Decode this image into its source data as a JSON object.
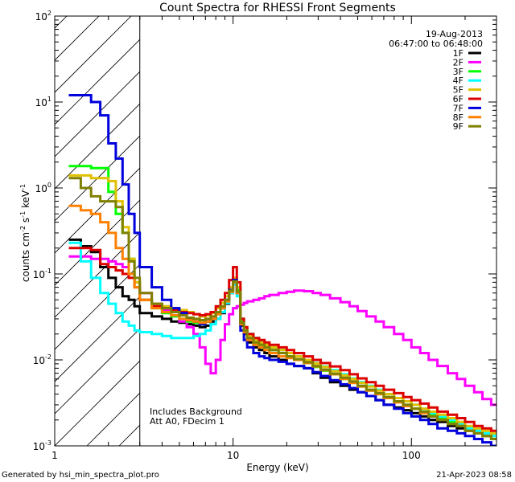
{
  "chart_data": {
    "type": "line",
    "title": "Count Spectra for RHESSI Front Segments",
    "xlabel": "Energy (keV)",
    "ylabel_parts": [
      "counts cm",
      "-2",
      " s",
      "-1",
      " keV",
      "-1"
    ],
    "xscale": "log",
    "yscale": "log",
    "xlim": [
      1,
      300
    ],
    "ylim": [
      0.001,
      100
    ],
    "x_tick_labels": [
      "1",
      "10",
      "100"
    ],
    "y_tick_labels": [
      {
        "base": "10",
        "exp": "2",
        "value": 100
      },
      {
        "base": "10",
        "exp": "1",
        "value": 10
      },
      {
        "base": "10",
        "exp": "0",
        "value": 1
      },
      {
        "base": "10",
        "exp": "-1",
        "value": 0.1
      },
      {
        "base": "10",
        "exp": "-2",
        "value": 0.01
      },
      {
        "base": "10",
        "exp": "-3",
        "value": 0.001
      }
    ],
    "legend_header": [
      "19-Aug-2013",
      "06:47:00 to 06:48:00"
    ],
    "legend_position": "top-right",
    "hatched_region_energy_max": 3,
    "annotations": [
      "Includes Background",
      "Att A0, FDecim 1"
    ],
    "energies": [
      1.2,
      1.4,
      1.6,
      1.8,
      2.0,
      2.2,
      2.4,
      2.6,
      2.8,
      3.0,
      3.5,
      4.0,
      4.5,
      5.0,
      5.5,
      6.0,
      6.5,
      7.0,
      7.5,
      8.0,
      8.5,
      9.0,
      9.5,
      10.0,
      10.5,
      11.0,
      11.5,
      12.0,
      13,
      14,
      15,
      16,
      18,
      20,
      22,
      25,
      28,
      31,
      35,
      40,
      45,
      50,
      56,
      63,
      70,
      80,
      90,
      100,
      112,
      125,
      140,
      160,
      180,
      200,
      225,
      250,
      280
    ],
    "series": [
      {
        "name": "1F",
        "color": "#000000",
        "values": [
          0.25,
          0.21,
          0.18,
          0.12,
          0.09,
          0.07,
          0.055,
          0.05,
          0.042,
          0.035,
          0.032,
          0.03,
          0.028,
          0.027,
          0.026,
          0.025,
          0.024,
          0.025,
          0.028,
          0.03,
          0.035,
          0.045,
          0.06,
          0.08,
          0.06,
          0.025,
          0.02,
          0.016,
          0.014,
          0.013,
          0.012,
          0.011,
          0.01,
          0.009,
          0.0085,
          0.008,
          0.007,
          0.0062,
          0.0055,
          0.005,
          0.0045,
          0.0042,
          0.0038,
          0.0034,
          0.003,
          0.0028,
          0.0026,
          0.0024,
          0.0022,
          0.002,
          0.0019,
          0.0017,
          0.0016,
          0.0015,
          0.0014,
          0.0013,
          0.0012
        ]
      },
      {
        "name": "2F",
        "color": "#ff00ff",
        "values": [
          0.16,
          0.16,
          0.15,
          0.15,
          0.14,
          0.13,
          0.12,
          0.1,
          0.08,
          0.06,
          0.045,
          0.038,
          0.032,
          0.028,
          0.024,
          0.02,
          0.014,
          0.009,
          0.007,
          0.01,
          0.017,
          0.026,
          0.034,
          0.04,
          0.042,
          0.044,
          0.046,
          0.048,
          0.05,
          0.052,
          0.055,
          0.057,
          0.06,
          0.062,
          0.064,
          0.063,
          0.06,
          0.057,
          0.052,
          0.047,
          0.042,
          0.037,
          0.032,
          0.028,
          0.024,
          0.02,
          0.017,
          0.014,
          0.012,
          0.01,
          0.0085,
          0.007,
          0.006,
          0.005,
          0.0042,
          0.0035,
          0.003
        ]
      },
      {
        "name": "3F",
        "color": "#00ff00",
        "values": [
          1.8,
          1.8,
          1.7,
          1.7,
          0.9,
          0.5,
          0.3,
          0.15,
          0.08,
          0.05,
          0.04,
          0.035,
          0.032,
          0.03,
          0.028,
          0.027,
          0.026,
          0.028,
          0.03,
          0.034,
          0.04,
          0.05,
          0.065,
          0.085,
          0.065,
          0.028,
          0.022,
          0.018,
          0.016,
          0.015,
          0.014,
          0.013,
          0.012,
          0.011,
          0.01,
          0.0092,
          0.0083,
          0.0075,
          0.0068,
          0.006,
          0.0054,
          0.0049,
          0.0044,
          0.004,
          0.0036,
          0.0033,
          0.003,
          0.0027,
          0.0025,
          0.0023,
          0.0021,
          0.0019,
          0.0018,
          0.0016,
          0.0015,
          0.0014,
          0.0013
        ]
      },
      {
        "name": "4F",
        "color": "#00ffff",
        "values": [
          0.23,
          0.14,
          0.09,
          0.06,
          0.045,
          0.035,
          0.028,
          0.025,
          0.022,
          0.021,
          0.02,
          0.019,
          0.018,
          0.018,
          0.018,
          0.019,
          0.02,
          0.022,
          0.026,
          0.03,
          0.036,
          0.046,
          0.06,
          0.075,
          0.055,
          0.03,
          0.024,
          0.02,
          0.018,
          0.016,
          0.015,
          0.014,
          0.013,
          0.012,
          0.011,
          0.01,
          0.0092,
          0.0084,
          0.0076,
          0.0068,
          0.0061,
          0.0055,
          0.005,
          0.0045,
          0.004,
          0.0036,
          0.0033,
          0.003,
          0.0027,
          0.0024,
          0.0022,
          0.002,
          0.0018,
          0.0016,
          0.0015,
          0.0014,
          0.0013
        ]
      },
      {
        "name": "5F",
        "color": "#e0c000",
        "values": [
          1.4,
          1.4,
          1.3,
          1.3,
          1.2,
          0.7,
          0.35,
          0.15,
          0.08,
          0.05,
          0.045,
          0.042,
          0.04,
          0.038,
          0.036,
          0.034,
          0.032,
          0.033,
          0.035,
          0.04,
          0.046,
          0.055,
          0.07,
          0.09,
          0.07,
          0.03,
          0.024,
          0.019,
          0.017,
          0.016,
          0.015,
          0.014,
          0.013,
          0.012,
          0.011,
          0.01,
          0.0091,
          0.0083,
          0.0074,
          0.0066,
          0.006,
          0.0054,
          0.0049,
          0.0044,
          0.004,
          0.0036,
          0.0033,
          0.003,
          0.0027,
          0.0025,
          0.0023,
          0.0021,
          0.0019,
          0.0017,
          0.0016,
          0.0015,
          0.0014
        ]
      },
      {
        "name": "6F",
        "color": "#dd0000",
        "values": [
          0.2,
          0.2,
          0.19,
          0.13,
          0.12,
          0.11,
          0.1,
          0.09,
          0.07,
          0.05,
          0.042,
          0.04,
          0.038,
          0.036,
          0.035,
          0.034,
          0.033,
          0.034,
          0.036,
          0.042,
          0.05,
          0.06,
          0.085,
          0.12,
          0.08,
          0.03,
          0.024,
          0.02,
          0.018,
          0.017,
          0.016,
          0.015,
          0.014,
          0.013,
          0.012,
          0.011,
          0.01,
          0.0092,
          0.0084,
          0.0076,
          0.0068,
          0.0061,
          0.0055,
          0.005,
          0.0045,
          0.0041,
          0.0037,
          0.0034,
          0.0031,
          0.0028,
          0.0025,
          0.0023,
          0.0021,
          0.0019,
          0.0017,
          0.0016,
          0.0015
        ]
      },
      {
        "name": "7F",
        "color": "#0000dd",
        "values": [
          12,
          12,
          10,
          7,
          3.3,
          2.2,
          1.1,
          0.5,
          0.3,
          0.12,
          0.07,
          0.05,
          0.04,
          0.035,
          0.03,
          0.028,
          0.026,
          0.028,
          0.03,
          0.035,
          0.04,
          0.05,
          0.065,
          0.085,
          0.06,
          0.022,
          0.017,
          0.014,
          0.012,
          0.011,
          0.0105,
          0.01,
          0.0095,
          0.009,
          0.0085,
          0.008,
          0.0072,
          0.0065,
          0.0058,
          0.0052,
          0.0047,
          0.0042,
          0.0038,
          0.0034,
          0.003,
          0.0027,
          0.0024,
          0.0022,
          0.002,
          0.0018,
          0.0016,
          0.0015,
          0.0014,
          0.0013,
          0.0012,
          0.0011,
          0.001
        ]
      },
      {
        "name": "8F",
        "color": "#ff8000",
        "values": [
          0.62,
          0.55,
          0.5,
          0.4,
          0.3,
          0.2,
          0.15,
          0.1,
          0.07,
          0.05,
          0.04,
          0.036,
          0.033,
          0.03,
          0.029,
          0.028,
          0.027,
          0.028,
          0.03,
          0.034,
          0.04,
          0.048,
          0.062,
          0.08,
          0.06,
          0.026,
          0.021,
          0.017,
          0.015,
          0.014,
          0.013,
          0.012,
          0.011,
          0.0105,
          0.01,
          0.0092,
          0.0084,
          0.0076,
          0.0068,
          0.006,
          0.0054,
          0.0049,
          0.0044,
          0.004,
          0.0036,
          0.0032,
          0.0029,
          0.0027,
          0.0024,
          0.0022,
          0.002,
          0.0018,
          0.0017,
          0.0015,
          0.0014,
          0.0013,
          0.0012
        ]
      },
      {
        "name": "9F",
        "color": "#808000",
        "values": [
          1.3,
          1.0,
          0.8,
          0.7,
          0.7,
          0.6,
          0.3,
          0.14,
          0.09,
          0.06,
          0.045,
          0.04,
          0.036,
          0.033,
          0.031,
          0.03,
          0.029,
          0.03,
          0.032,
          0.036,
          0.042,
          0.05,
          0.064,
          0.082,
          0.062,
          0.027,
          0.022,
          0.018,
          0.016,
          0.015,
          0.014,
          0.013,
          0.012,
          0.011,
          0.0102,
          0.0094,
          0.0085,
          0.0077,
          0.0069,
          0.0062,
          0.0056,
          0.005,
          0.0045,
          0.0041,
          0.0037,
          0.0033,
          0.003,
          0.0027,
          0.0025,
          0.0022,
          0.002,
          0.0018,
          0.0017,
          0.0015,
          0.0014,
          0.0013,
          0.0012
        ]
      }
    ]
  },
  "footer": {
    "generated_by": "Generated by hsi_min_spectra_plot.pro",
    "date": "21-Apr-2023 08:58"
  }
}
